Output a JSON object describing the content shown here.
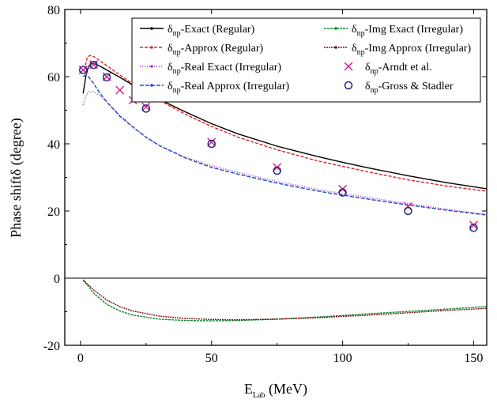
{
  "chart_data": {
    "type": "line",
    "xlabel_main": "E",
    "xlabel_sub": "Lab",
    "xlabel_unit": " (MeV)",
    "ylabel": "Phase shiftδ (degree)",
    "xlim": [
      -6,
      155
    ],
    "ylim": [
      -20,
      80
    ],
    "xticks": [
      0,
      50,
      100,
      150
    ],
    "yticks": [
      -20,
      0,
      20,
      40,
      60,
      80
    ],
    "xtick_labels": [
      "0",
      "50",
      "100",
      "150"
    ],
    "ytick_labels": [
      "-20",
      "0",
      "20",
      "40",
      "60",
      "80"
    ],
    "zero_line": true,
    "legend_position": "top-right",
    "series": [
      {
        "name_pre": "δ",
        "name_sub": "np",
        "name_post": "-Exact (Regular)",
        "color": "#000000",
        "dash": "",
        "marker": "dot",
        "points": [
          [
            1,
            55
          ],
          [
            2,
            60
          ],
          [
            3,
            63
          ],
          [
            4,
            63.8
          ],
          [
            5,
            64
          ],
          [
            7,
            63.3
          ],
          [
            10,
            62
          ],
          [
            15,
            59.8
          ],
          [
            20,
            57.5
          ],
          [
            25,
            55.3
          ],
          [
            30,
            53.3
          ],
          [
            40,
            49.5
          ],
          [
            50,
            46
          ],
          [
            60,
            43
          ],
          [
            75,
            39.3
          ],
          [
            90,
            36.3
          ],
          [
            100,
            34.5
          ],
          [
            110,
            32.8
          ],
          [
            125,
            30.5
          ],
          [
            140,
            28.4
          ],
          [
            155,
            26.6
          ]
        ]
      },
      {
        "name_pre": "δ",
        "name_sub": "np",
        "name_post": "-Approx (Regular)",
        "color": "#e02020",
        "dash": "4 2",
        "marker": "dot",
        "points": [
          [
            1.5,
            62
          ],
          [
            2.5,
            65.5
          ],
          [
            3.5,
            66.3
          ],
          [
            5,
            66
          ],
          [
            7,
            65
          ],
          [
            10,
            63.3
          ],
          [
            15,
            60.5
          ],
          [
            20,
            57.8
          ],
          [
            25,
            55.3
          ],
          [
            30,
            53
          ],
          [
            40,
            48.8
          ],
          [
            50,
            45.2
          ],
          [
            60,
            42
          ],
          [
            75,
            38.2
          ],
          [
            90,
            35
          ],
          [
            100,
            33.3
          ],
          [
            110,
            31.6
          ],
          [
            125,
            29.3
          ],
          [
            140,
            27.4
          ],
          [
            155,
            25.9
          ]
        ]
      },
      {
        "name_pre": "δ",
        "name_sub": "np",
        "name_post": "-Real Exact (Irregular)",
        "color": "#9933cc",
        "dash": "1 2",
        "marker": "dot",
        "points": [
          [
            1,
            51.5
          ],
          [
            2,
            54
          ],
          [
            3,
            55.5
          ],
          [
            5,
            55.5
          ],
          [
            7,
            54.5
          ],
          [
            10,
            52.5
          ],
          [
            15,
            48.5
          ],
          [
            20,
            45
          ],
          [
            25,
            42
          ],
          [
            30,
            39.5
          ],
          [
            40,
            36
          ],
          [
            50,
            33.5
          ],
          [
            60,
            31.5
          ],
          [
            75,
            28.8
          ],
          [
            90,
            26.5
          ],
          [
            100,
            25.2
          ],
          [
            110,
            24
          ],
          [
            125,
            22.2
          ],
          [
            140,
            20.5
          ],
          [
            155,
            19
          ]
        ]
      },
      {
        "name_pre": "δ",
        "name_sub": "np",
        "name_post": "-Real Approx (Irregular)",
        "color": "#2244cc",
        "dash": "5 2",
        "marker": "dot",
        "points": [
          [
            1,
            60
          ],
          [
            2,
            60.5
          ],
          [
            3,
            60
          ],
          [
            5,
            58
          ],
          [
            7,
            55.5
          ],
          [
            10,
            52.5
          ],
          [
            15,
            48.2
          ],
          [
            20,
            45
          ],
          [
            25,
            42
          ],
          [
            30,
            39.5
          ],
          [
            40,
            35.8
          ],
          [
            50,
            33
          ],
          [
            60,
            31
          ],
          [
            75,
            28.3
          ],
          [
            90,
            26
          ],
          [
            100,
            24.7
          ],
          [
            110,
            23.5
          ],
          [
            125,
            21.8
          ],
          [
            140,
            20.2
          ],
          [
            155,
            18.8
          ]
        ]
      },
      {
        "name_pre": "δ",
        "name_sub": "np",
        "name_post": "-Img Exact (Irregular)",
        "color": "#118833",
        "dash": "3 1",
        "marker": "dot",
        "points": [
          [
            1,
            -0.6
          ],
          [
            3,
            -2.5
          ],
          [
            5,
            -4.5
          ],
          [
            10,
            -7.8
          ],
          [
            15,
            -9.8
          ],
          [
            20,
            -11
          ],
          [
            30,
            -12.2
          ],
          [
            40,
            -12.6
          ],
          [
            50,
            -12.7
          ],
          [
            60,
            -12.6
          ],
          [
            75,
            -12.2
          ],
          [
            90,
            -11.6
          ],
          [
            100,
            -11.1
          ],
          [
            110,
            -10.6
          ],
          [
            125,
            -9.9
          ],
          [
            140,
            -9.2
          ],
          [
            155,
            -8.5
          ]
        ]
      },
      {
        "name_pre": "δ",
        "name_sub": "np",
        "name_post": "-Img Approx (Irregular)",
        "color": "#7a1010",
        "dash": "2 1",
        "marker": "dot",
        "points": [
          [
            1,
            -0.5
          ],
          [
            3,
            -2
          ],
          [
            5,
            -3.5
          ],
          [
            10,
            -6.5
          ],
          [
            15,
            -8.5
          ],
          [
            20,
            -9.8
          ],
          [
            30,
            -11.3
          ],
          [
            40,
            -12
          ],
          [
            50,
            -12.3
          ],
          [
            60,
            -12.4
          ],
          [
            75,
            -12.2
          ],
          [
            90,
            -11.8
          ],
          [
            100,
            -11.4
          ],
          [
            110,
            -11
          ],
          [
            125,
            -10.3
          ],
          [
            140,
            -9.6
          ],
          [
            155,
            -9
          ]
        ]
      }
    ],
    "markers": [
      {
        "name_pre": "δ",
        "name_sub": "np",
        "name_post": "-Arndt et al.",
        "color": "#e0208a",
        "shape": "x",
        "points": [
          [
            1,
            62
          ],
          [
            5,
            63.6
          ],
          [
            10,
            60
          ],
          [
            15,
            56
          ],
          [
            20,
            53
          ],
          [
            25,
            51
          ],
          [
            50,
            40.5
          ],
          [
            75,
            33
          ],
          [
            100,
            26.5
          ],
          [
            125,
            21.3
          ],
          [
            150,
            15.8
          ]
        ]
      },
      {
        "name_pre": "δ",
        "name_sub": "np",
        "name_post": "-Gross & Stadler",
        "color": "#1f2a80",
        "shape": "circle",
        "points": [
          [
            1,
            62
          ],
          [
            5,
            63.5
          ],
          [
            10,
            59.8
          ],
          [
            25,
            50.5
          ],
          [
            50,
            40
          ],
          [
            75,
            32
          ],
          [
            100,
            25.5
          ],
          [
            125,
            20
          ],
          [
            150,
            15
          ]
        ]
      }
    ]
  }
}
